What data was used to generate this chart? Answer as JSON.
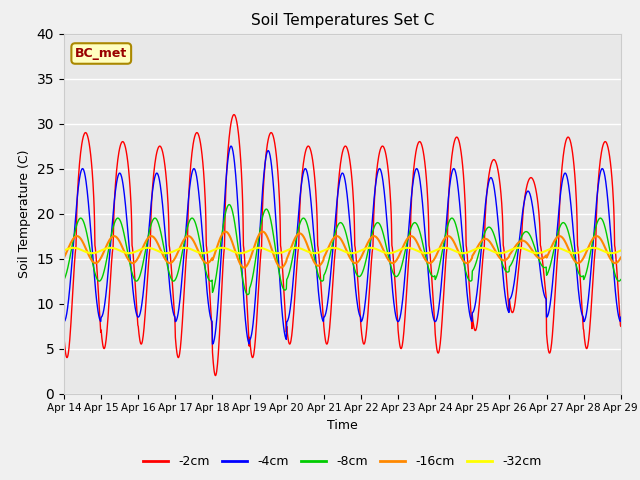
{
  "title": "Soil Temperatures Set C",
  "xlabel": "Time",
  "ylabel": "Soil Temperature (C)",
  "ylim": [
    0,
    40
  ],
  "yticks": [
    0,
    5,
    10,
    15,
    20,
    25,
    30,
    35,
    40
  ],
  "x_labels": [
    "Apr 14",
    "Apr 15",
    "Apr 16",
    "Apr 17",
    "Apr 18",
    "Apr 19",
    "Apr 20",
    "Apr 21",
    "Apr 22",
    "Apr 23",
    "Apr 24",
    "Apr 25",
    "Apr 26",
    "Apr 27",
    "Apr 28",
    "Apr 29"
  ],
  "annotation": "BC_met",
  "colors": {
    "-2cm": "#ff0000",
    "-4cm": "#0000ff",
    "-8cm": "#00cc00",
    "-16cm": "#ff8800",
    "-32cm": "#ffff00"
  },
  "plot_bg_color": "#e8e8e8",
  "fig_bg_color": "#f0f0f0",
  "legend_order": [
    "-2cm",
    "-4cm",
    "-8cm",
    "-16cm",
    "-32cm"
  ]
}
